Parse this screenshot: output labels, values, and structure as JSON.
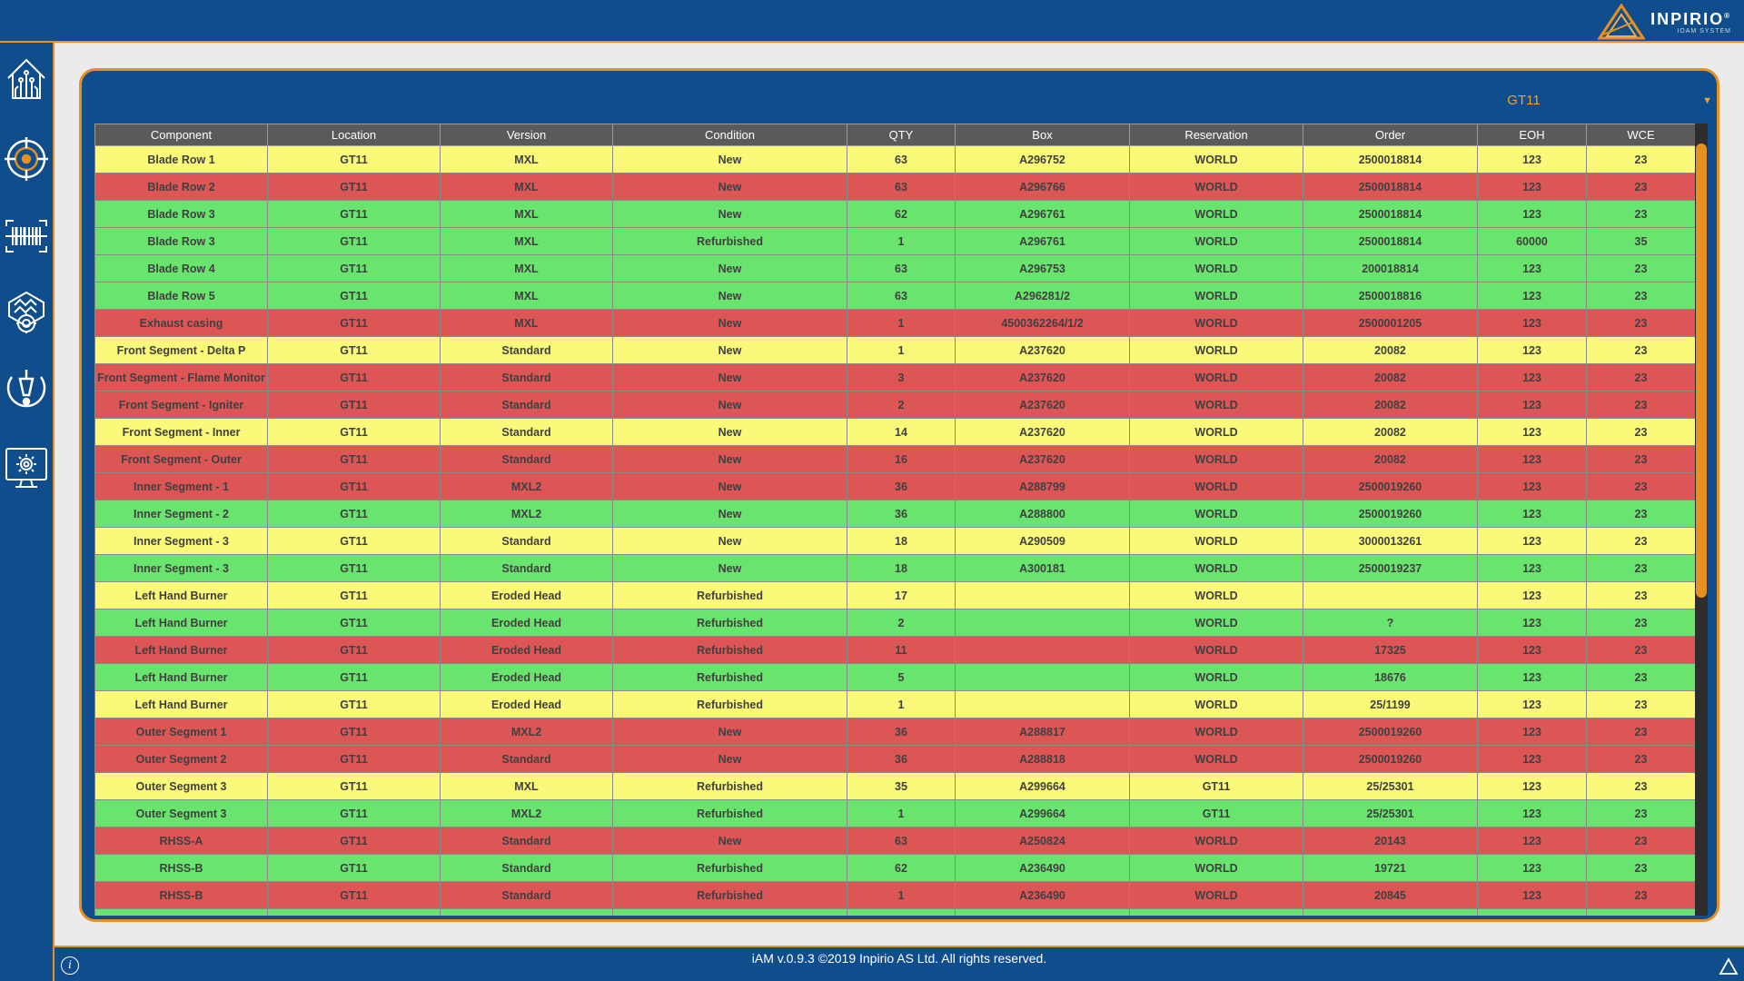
{
  "brand": {
    "name": "INPIRIO",
    "reg": "®",
    "subtitle": "IOAM SYSTEM"
  },
  "sidebar": {
    "items": [
      {
        "icon": "home-circuit-icon"
      },
      {
        "icon": "target-radar-icon"
      },
      {
        "icon": "barcode-scanner-icon"
      },
      {
        "icon": "parts-engine-icon"
      },
      {
        "icon": "alert-shield-icon"
      },
      {
        "icon": "monitor-settings-icon"
      }
    ]
  },
  "selector": {
    "value": "GT11",
    "arrow": "▼"
  },
  "table": {
    "headers": [
      "Component",
      "Location",
      "Version",
      "Condition",
      "QTY",
      "Box",
      "Reservation",
      "Order",
      "EOH",
      "WCE"
    ],
    "rows": [
      {
        "status": "yellow",
        "cells": [
          "Blade Row 1",
          "GT11",
          "MXL",
          "New",
          "63",
          "A296752",
          "WORLD",
          "2500018814",
          "123",
          "23"
        ]
      },
      {
        "status": "red",
        "cells": [
          "Blade Row 2",
          "GT11",
          "MXL",
          "New",
          "63",
          "A296766",
          "WORLD",
          "2500018814",
          "123",
          "23"
        ]
      },
      {
        "status": "green",
        "cells": [
          "Blade Row 3",
          "GT11",
          "MXL",
          "New",
          "62",
          "A296761",
          "WORLD",
          "2500018814",
          "123",
          "23"
        ]
      },
      {
        "status": "green",
        "cells": [
          "Blade Row 3",
          "GT11",
          "MXL",
          "Refurbished",
          "1",
          "A296761",
          "WORLD",
          "2500018814",
          "60000",
          "35"
        ]
      },
      {
        "status": "green",
        "cells": [
          "Blade Row 4",
          "GT11",
          "MXL",
          "New",
          "63",
          "A296753",
          "WORLD",
          "200018814",
          "123",
          "23"
        ]
      },
      {
        "status": "green",
        "cells": [
          "Blade Row 5",
          "GT11",
          "MXL",
          "New",
          "63",
          "A296281/2",
          "WORLD",
          "2500018816",
          "123",
          "23"
        ]
      },
      {
        "status": "red",
        "cells": [
          "Exhaust casing",
          "GT11",
          "MXL",
          "New",
          "1",
          "4500362264/1/2",
          "WORLD",
          "2500001205",
          "123",
          "23"
        ]
      },
      {
        "status": "yellow",
        "cells": [
          "Front Segment - Delta P",
          "GT11",
          "Standard",
          "New",
          "1",
          "A237620",
          "WORLD",
          "20082",
          "123",
          "23"
        ]
      },
      {
        "status": "red",
        "cells": [
          "Front Segment - Flame Monitor",
          "GT11",
          "Standard",
          "New",
          "3",
          "A237620",
          "WORLD",
          "20082",
          "123",
          "23"
        ]
      },
      {
        "status": "red",
        "cells": [
          "Front Segment - Igniter",
          "GT11",
          "Standard",
          "New",
          "2",
          "A237620",
          "WORLD",
          "20082",
          "123",
          "23"
        ]
      },
      {
        "status": "yellow",
        "cells": [
          "Front Segment - Inner",
          "GT11",
          "Standard",
          "New",
          "14",
          "A237620",
          "WORLD",
          "20082",
          "123",
          "23"
        ]
      },
      {
        "status": "red",
        "cells": [
          "Front Segment - Outer",
          "GT11",
          "Standard",
          "New",
          "16",
          "A237620",
          "WORLD",
          "20082",
          "123",
          "23"
        ]
      },
      {
        "status": "red",
        "cells": [
          "Inner Segment - 1",
          "GT11",
          "MXL2",
          "New",
          "36",
          "A288799",
          "WORLD",
          "2500019260",
          "123",
          "23"
        ]
      },
      {
        "status": "green",
        "cells": [
          "Inner Segment - 2",
          "GT11",
          "MXL2",
          "New",
          "36",
          "A288800",
          "WORLD",
          "2500019260",
          "123",
          "23"
        ]
      },
      {
        "status": "yellow",
        "cells": [
          "Inner Segment - 3",
          "GT11",
          "Standard",
          "New",
          "18",
          "A290509",
          "WORLD",
          "3000013261",
          "123",
          "23"
        ]
      },
      {
        "status": "green",
        "cells": [
          "Inner Segment - 3",
          "GT11",
          "Standard",
          "New",
          "18",
          "A300181",
          "WORLD",
          "2500019237",
          "123",
          "23"
        ]
      },
      {
        "status": "yellow",
        "cells": [
          "Left Hand Burner",
          "GT11",
          "Eroded Head",
          "Refurbished",
          "17",
          "",
          "WORLD",
          "",
          "123",
          "23"
        ]
      },
      {
        "status": "green",
        "cells": [
          "Left Hand Burner",
          "GT11",
          "Eroded Head",
          "Refurbished",
          "2",
          "",
          "WORLD",
          "?",
          "123",
          "23"
        ]
      },
      {
        "status": "red",
        "cells": [
          "Left Hand Burner",
          "GT11",
          "Eroded Head",
          "Refurbished",
          "11",
          "",
          "WORLD",
          "17325",
          "123",
          "23"
        ]
      },
      {
        "status": "green",
        "cells": [
          "Left Hand Burner",
          "GT11",
          "Eroded Head",
          "Refurbished",
          "5",
          "",
          "WORLD",
          "18676",
          "123",
          "23"
        ]
      },
      {
        "status": "yellow",
        "cells": [
          "Left Hand Burner",
          "GT11",
          "Eroded Head",
          "Refurbished",
          "1",
          "",
          "WORLD",
          "25/1199",
          "123",
          "23"
        ]
      },
      {
        "status": "red",
        "cells": [
          "Outer Segment 1",
          "GT11",
          "MXL2",
          "New",
          "36",
          "A288817",
          "WORLD",
          "2500019260",
          "123",
          "23"
        ]
      },
      {
        "status": "red",
        "cells": [
          "Outer Segment 2",
          "GT11",
          "Standard",
          "New",
          "36",
          "A288818",
          "WORLD",
          "2500019260",
          "123",
          "23"
        ]
      },
      {
        "status": "yellow",
        "cells": [
          "Outer Segment 3",
          "GT11",
          "MXL",
          "Refurbished",
          "35",
          "A299664",
          "GT11",
          "25/25301",
          "123",
          "23"
        ]
      },
      {
        "status": "green",
        "cells": [
          "Outer Segment 3",
          "GT11",
          "MXL2",
          "Refurbished",
          "1",
          "A299664",
          "GT11",
          "25/25301",
          "123",
          "23"
        ]
      },
      {
        "status": "red",
        "cells": [
          "RHSS-A",
          "GT11",
          "Standard",
          "New",
          "63",
          "A250824",
          "WORLD",
          "20143",
          "123",
          "23"
        ]
      },
      {
        "status": "green",
        "cells": [
          "RHSS-B",
          "GT11",
          "Standard",
          "Refurbished",
          "62",
          "A236490",
          "WORLD",
          "19721",
          "123",
          "23"
        ]
      },
      {
        "status": "red",
        "cells": [
          "RHSS-B",
          "GT11",
          "Standard",
          "Refurbished",
          "1",
          "A236490",
          "WORLD",
          "20845",
          "123",
          "23"
        ]
      },
      {
        "status": "green",
        "cells": [
          "",
          "",
          "",
          "",
          "",
          "",
          "",
          "",
          "",
          ""
        ]
      }
    ]
  },
  "colors": {
    "yellow": "#fbf97a",
    "red": "#dc5656",
    "green": "#69e46e",
    "header": "#5a5a5a",
    "accent": "#e8901f",
    "chrome": "#0f4d8c"
  },
  "footer": {
    "text": "iAM v.0.9.3 ©2019 Inpirio AS Ltd. All rights reserved.",
    "info_glyph": "i"
  }
}
